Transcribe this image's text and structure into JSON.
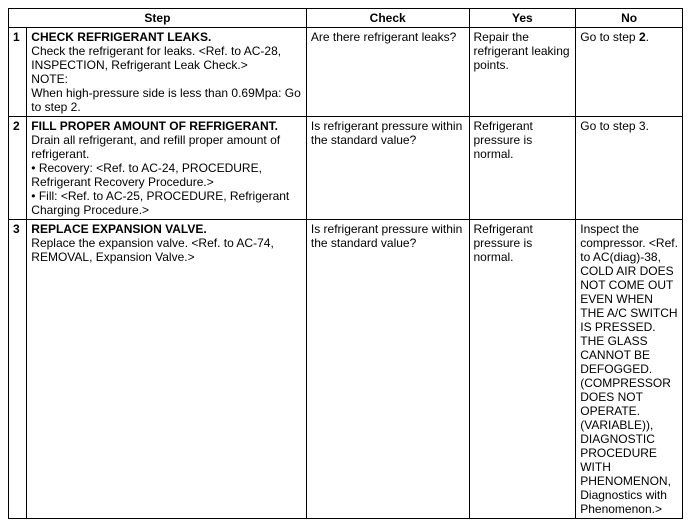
{
  "headers": {
    "step": "Step",
    "check": "Check",
    "yes": "Yes",
    "no": "No"
  },
  "rows": [
    {
      "num": "1",
      "title": "CHECK REFRIGERANT LEAKS.",
      "body_l1": "Check the refrigerant for leaks. <Ref. to AC-28, INSPECTION, Refrigerant Leak Check.>",
      "note_label": "NOTE:",
      "note_body": "When high-pressure side is less than 0.69Mpa: Go to step 2.",
      "check": "Are there refrigerant leaks?",
      "yes": "Repair the refrigerant leaking points.",
      "no_pre": "Go to step ",
      "no_bold": "2",
      "no_post": "."
    },
    {
      "num": "2",
      "title": "FILL PROPER AMOUNT OF REFRIGERANT.",
      "body_l1": "Drain all refrigerant, and refill proper amount of refrigerant.",
      "bullet1": "• Recovery: <Ref. to AC-24, PROCEDURE, Refrigerant Recovery Procedure.>",
      "bullet2": "• Fill: <Ref. to AC-25, PROCEDURE, Refrigerant Charging Procedure.>",
      "check": "Is refrigerant pressure within the standard value?",
      "yes": "Refrigerant pressure is normal.",
      "no": "Go to step 3."
    },
    {
      "num": "3",
      "title": "REPLACE EXPANSION VALVE.",
      "body_l1": "Replace the expansion valve. <Ref. to AC-74, REMOVAL, Expansion Valve.>",
      "check": "Is refrigerant pressure within the standard value?",
      "yes": "Refrigerant pressure is normal.",
      "no": "Inspect the compressor. <Ref. to AC(diag)-38, COLD AIR DOES NOT COME OUT EVEN WHEN THE A/C SWITCH IS PRESSED. THE GLASS CANNOT BE DEFOGGED. (COMPRESSOR DOES NOT OPERATE. (VARIABLE)), DIAGNOSTIC PROCEDURE WITH PHENOMENON, Diagnostics with Phenomenon.>"
    }
  ]
}
